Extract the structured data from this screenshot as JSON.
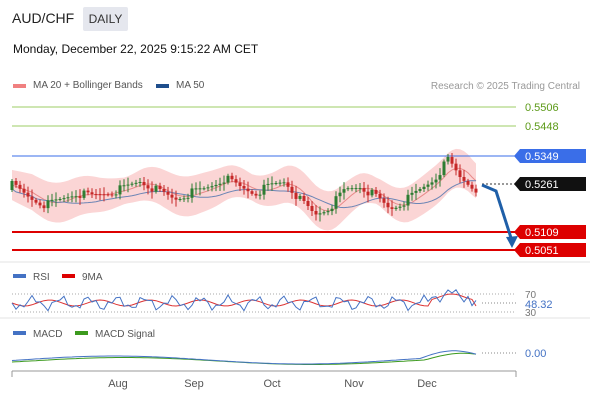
{
  "header": {
    "symbol": "AUD/CHF",
    "period": "DAILY",
    "timestamp": "Monday, December 22, 2025 9:15:22 AM CET"
  },
  "legend": {
    "bb_label": "MA 20 + Bollinger Bands",
    "bb_color": "#f08080",
    "ma50_label": "MA 50",
    "ma50_color": "#1f4e8c",
    "credit": "Research © 2025 Trading Central"
  },
  "levels": [
    {
      "price": "0.5506",
      "kind": "target",
      "color": "#66a31c"
    },
    {
      "price": "0.5448",
      "kind": "target",
      "color": "#66a31c"
    },
    {
      "price": "0.5349",
      "kind": "pivot",
      "color": "#3a6ee8"
    },
    {
      "price": "0.5261",
      "kind": "last",
      "color": "#111111"
    },
    {
      "price": "0.5109",
      "kind": "support",
      "color": "#dd0000"
    },
    {
      "price": "0.5051",
      "kind": "support",
      "color": "#dd0000"
    }
  ],
  "rsi": {
    "label": "RSI",
    "ma_label": "9MA",
    "rsi_color": "#4472c4",
    "ma_color": "#dd0000",
    "upper": "70",
    "value": "48.32",
    "lower": "30"
  },
  "macd": {
    "label": "MACD",
    "signal_label": "MACD Signal",
    "macd_color": "#4472c4",
    "signal_color": "#3c9a1e",
    "value": "0.00"
  },
  "xaxis": {
    "labels": [
      "Aug",
      "Sep",
      "Oct",
      "Nov",
      "Dec"
    ]
  },
  "colors": {
    "up": "#2e7d32",
    "down": "#c62828",
    "band": "#fbd5d5",
    "arrow": "#1f5fa8"
  }
}
